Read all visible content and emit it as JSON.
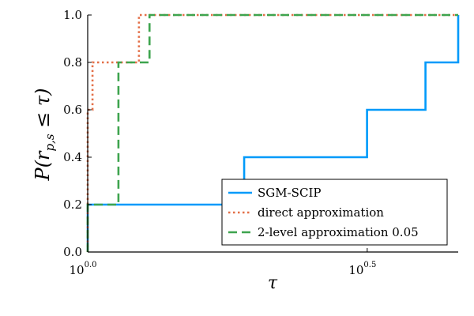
{
  "chart_data": {
    "type": "line",
    "title": "",
    "xlabel": "τ",
    "ylabel": "P(r_{p,s} ≤ τ)",
    "xscale": "log10",
    "xlim": [
      1.0,
      4.6
    ],
    "ylim": [
      0.0,
      1.0
    ],
    "x_ticks": [
      {
        "value": 1.0,
        "base": "10",
        "exp": "0.0"
      },
      {
        "value": 3.1623,
        "base": "10",
        "exp": "0.5"
      }
    ],
    "y_ticks": [
      0.0,
      0.2,
      0.4,
      0.6,
      0.8,
      1.0
    ],
    "y_tick_labels": [
      "0.0",
      "0.2",
      "0.4",
      "0.6",
      "0.8",
      "1.0"
    ],
    "grid": false,
    "legend_position": "bottom-right",
    "series": [
      {
        "name": "SGM-SCIP",
        "color": "#009AFA",
        "dash": "solid",
        "x": [
          1.0,
          1.0,
          1.905,
          1.905,
          3.16,
          3.16,
          4.02,
          4.02,
          4.6,
          4.6
        ],
        "y": [
          0.0,
          0.2,
          0.2,
          0.4,
          0.4,
          0.6,
          0.6,
          0.8,
          0.8,
          1.0
        ]
      },
      {
        "name": "direct approximation",
        "color": "#E36F47",
        "dash": "dotted",
        "x": [
          1.0,
          1.0,
          1.02,
          1.02,
          1.235,
          1.235,
          4.6
        ],
        "y": [
          0.0,
          0.6,
          0.6,
          0.8,
          0.8,
          1.0,
          1.0
        ]
      },
      {
        "name": "2-level approximation 0.05",
        "color": "#3EA44E",
        "dash": "dashed",
        "x": [
          1.0,
          1.0,
          1.135,
          1.135,
          1.29,
          1.29,
          4.6
        ],
        "y": [
          0.0,
          0.2,
          0.2,
          0.8,
          0.8,
          1.0,
          1.0
        ]
      }
    ]
  }
}
